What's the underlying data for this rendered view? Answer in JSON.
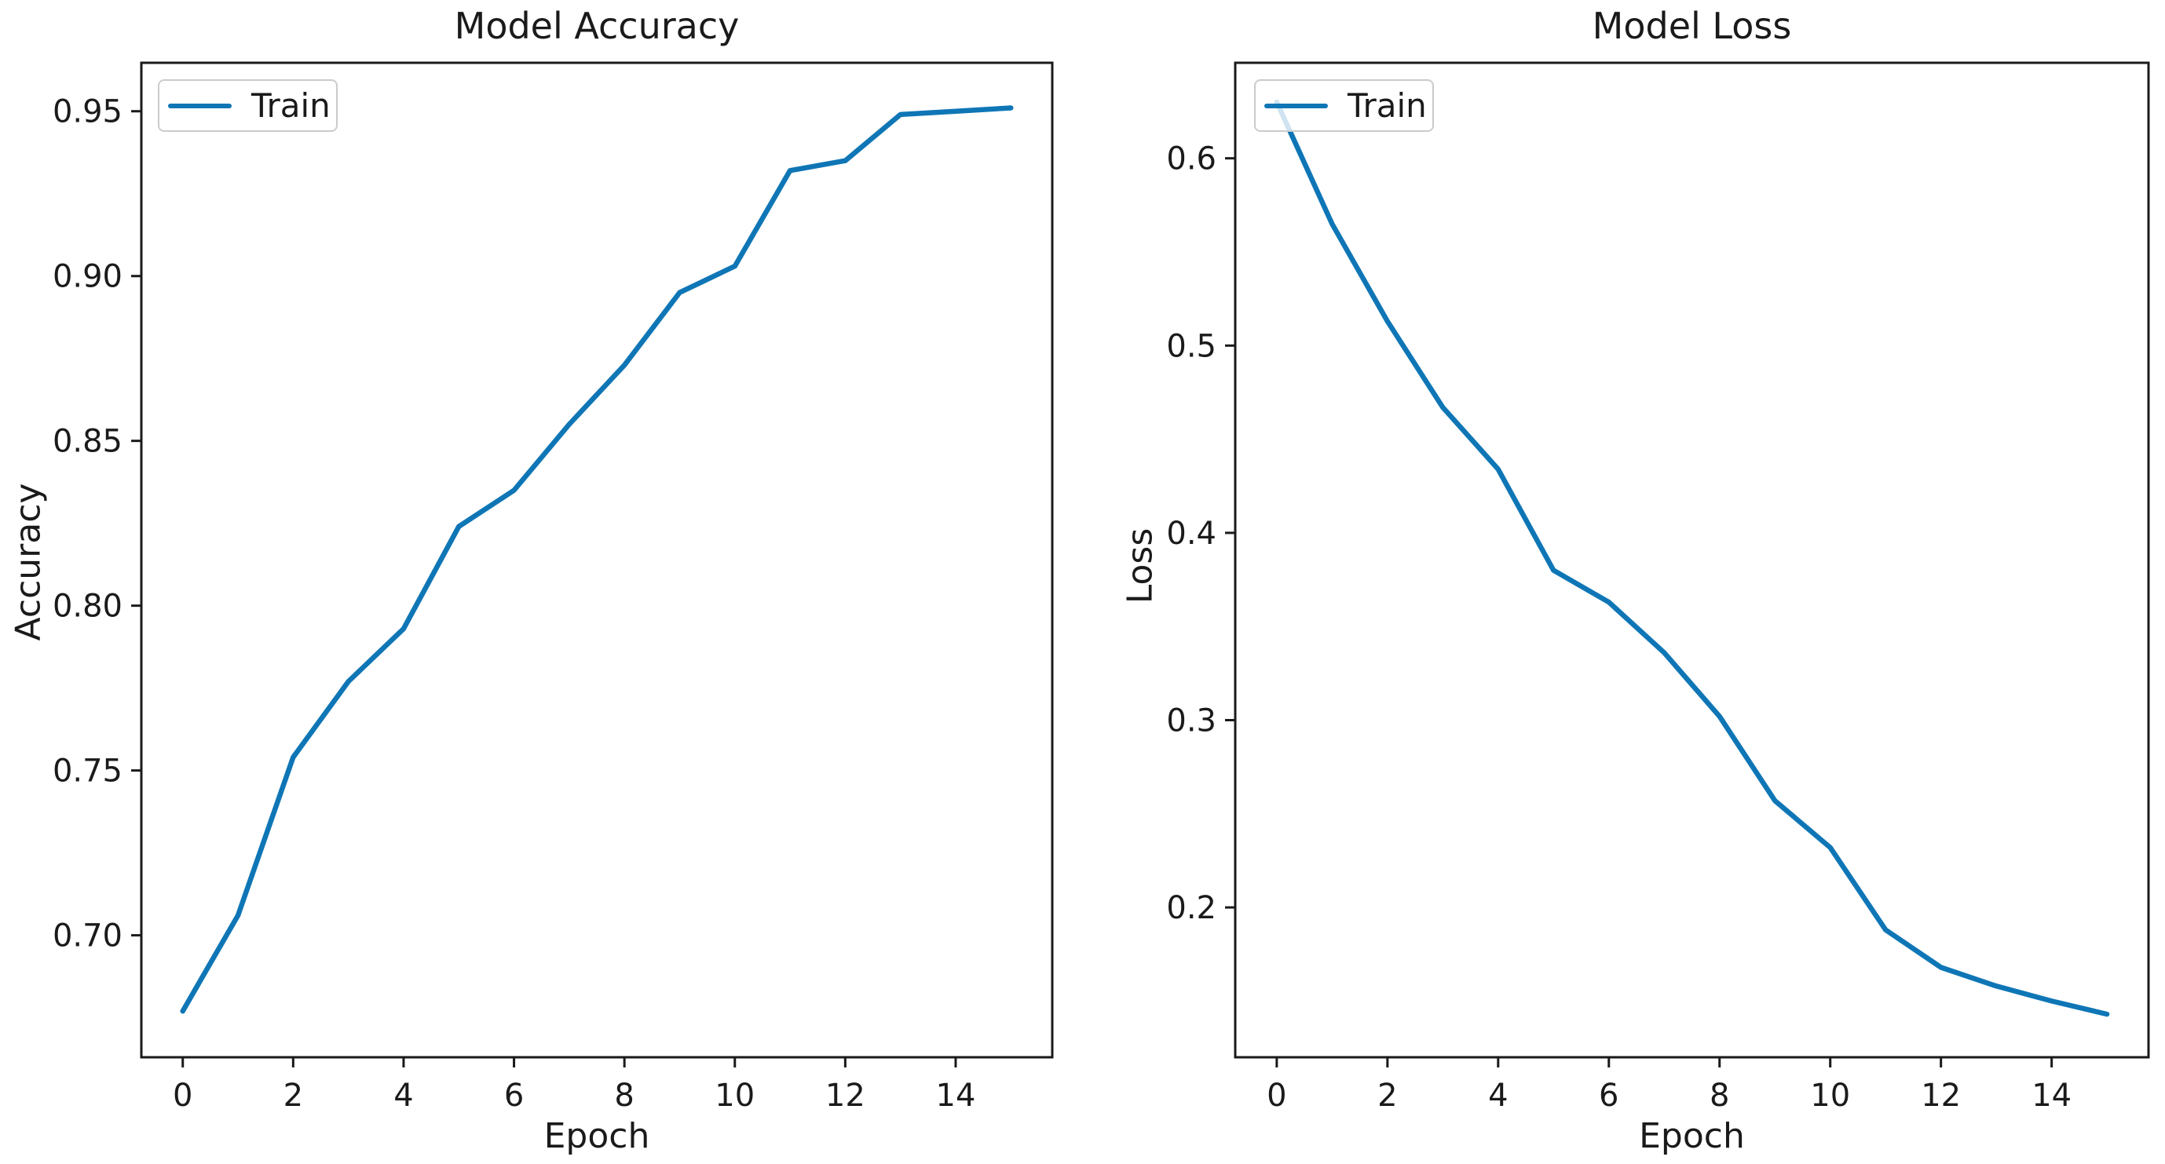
{
  "figure": {
    "background": "#ffffff",
    "text_color": "#1a1a1a",
    "accent_color": "#0f76b6"
  },
  "chart_data": [
    {
      "type": "line",
      "title": "Model Accuracy",
      "xlabel": "Epoch",
      "ylabel": "Accuracy",
      "legend": {
        "position": "upper left",
        "entries": [
          "Train"
        ]
      },
      "line_color": "#0f76b6",
      "grid": false,
      "x": [
        0,
        1,
        2,
        3,
        4,
        5,
        6,
        7,
        8,
        9,
        10,
        11,
        12,
        13,
        14,
        15
      ],
      "series": [
        {
          "name": "Train",
          "values": [
            0.677,
            0.706,
            0.754,
            0.777,
            0.793,
            0.824,
            0.835,
            0.855,
            0.873,
            0.895,
            0.903,
            0.932,
            0.935,
            0.949,
            0.95,
            0.951
          ]
        }
      ],
      "xlim": [
        -0.75,
        15.75
      ],
      "ylim": [
        0.663,
        0.9647
      ],
      "xticks": [
        0,
        2,
        4,
        6,
        8,
        10,
        12,
        14
      ],
      "xtick_labels": [
        "0",
        "2",
        "4",
        "6",
        "8",
        "10",
        "12",
        "14"
      ],
      "yticks": [
        0.7,
        0.75,
        0.8,
        0.85,
        0.9,
        0.95
      ],
      "ytick_labels": [
        "0.70",
        "0.75",
        "0.80",
        "0.85",
        "0.90",
        "0.95"
      ]
    },
    {
      "type": "line",
      "title": "Model Loss",
      "xlabel": "Epoch",
      "ylabel": "Loss",
      "legend": {
        "position": "upper left",
        "entries": [
          "Train"
        ]
      },
      "line_color": "#0f76b6",
      "grid": false,
      "x": [
        0,
        1,
        2,
        3,
        4,
        5,
        6,
        7,
        8,
        9,
        10,
        11,
        12,
        13,
        14,
        15
      ],
      "series": [
        {
          "name": "Train",
          "values": [
            0.63,
            0.565,
            0.513,
            0.467,
            0.434,
            0.38,
            0.363,
            0.336,
            0.302,
            0.257,
            0.232,
            0.188,
            0.168,
            0.158,
            0.15,
            0.143
          ]
        }
      ],
      "xlim": [
        -0.75,
        15.75
      ],
      "ylim": [
        0.12,
        0.651
      ],
      "xticks": [
        0,
        2,
        4,
        6,
        8,
        10,
        12,
        14
      ],
      "xtick_labels": [
        "0",
        "2",
        "4",
        "6",
        "8",
        "10",
        "12",
        "14"
      ],
      "yticks": [
        0.2,
        0.3,
        0.4,
        0.5,
        0.6
      ],
      "ytick_labels": [
        "0.2",
        "0.3",
        "0.4",
        "0.5",
        "0.6"
      ]
    }
  ]
}
